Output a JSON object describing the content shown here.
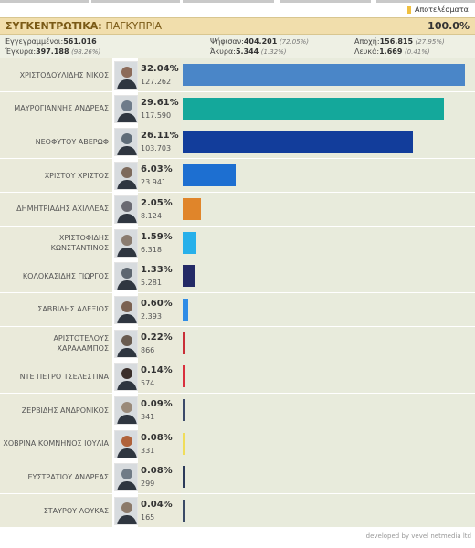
{
  "header": {
    "results_label": "Αποτελέσματα",
    "title": "ΣΥΓΚΕΝΤΡΩΤΙΚΑ:",
    "region": "ΠΑΓΚΥΠΡΙΑ",
    "counted_percent": "100.0%"
  },
  "stats": {
    "registered_label": "Εγγεγραμμένοι:",
    "registered_value": "561.016",
    "voted_label": "Ψήφισαν:",
    "voted_value": "404.201",
    "voted_pct": "(72.05%)",
    "abstention_label": "Αποχή:",
    "abstention_value": "156.815",
    "abstention_pct": "(27.95%)",
    "valid_label": "Έγκυρα:",
    "valid_value": "397.188",
    "valid_pct": "(98.26%)",
    "invalid_label": "Άκυρα:",
    "invalid_value": "5.344",
    "invalid_pct": "(1.32%)",
    "blank_label": "Λευκά:",
    "blank_value": "1.669",
    "blank_pct": "(0.41%)"
  },
  "chart_data": {
    "type": "bar",
    "orientation": "horizontal",
    "categories": [
      "ΧΡΙΣΤΟΔΟΥΛΙΔΗΣ ΝΙΚΟΣ",
      "ΜΑΥΡΟΓΙΑΝΝΗΣ ΑΝΔΡΕΑΣ",
      "ΝΕΟΦΥΤΟΥ ΑΒΕΡΩΦ",
      "ΧΡΙΣΤΟΥ ΧΡΙΣΤΟΣ",
      "ΔΗΜΗΤΡΙΑΔΗΣ ΑΧΙΛΛΕΑΣ",
      "ΧΡΙΣΤΟΦΙΔΗΣ ΚΩΝΣΤΑΝΤΙΝΟΣ",
      "ΚΟΛΟΚΑΣΙΔΗΣ ΓΙΩΡΓΟΣ",
      "ΣΑΒΒΙΔΗΣ ΑΛΕΞΙΟΣ",
      "ΑΡΙΣΤΟΤΕΛΟΥΣ ΧΑΡΑΛΑΜΠΟΣ",
      "ΝΤΕ ΠΕΤΡΟ ΤΣΕΛΕΣΤΙΝΑ",
      "ΖΕΡΒΙΔΗΣ ΑΝΔΡΟΝΙΚΟΣ",
      "ΧΟΒΡΙΝΑ ΚΟΜΝΗΝΟΣ ΙΟΥΛΙΑ",
      "ΕΥΣΤΡΑΤΙΟΥ ΑΝΔΡΕΑΣ",
      "ΣΤΑΥΡΟΥ ΛΟΥΚΑΣ"
    ],
    "values": [
      32.04,
      29.61,
      26.11,
      6.03,
      2.05,
      1.59,
      1.33,
      0.6,
      0.22,
      0.14,
      0.09,
      0.08,
      0.08,
      0.04
    ],
    "value_labels": [
      "32.04%",
      "29.61%",
      "26.11%",
      "6.03%",
      "2.05%",
      "1.59%",
      "1.33%",
      "0.60%",
      "0.22%",
      "0.14%",
      "0.09%",
      "0.08%",
      "0.08%",
      "0.04%"
    ],
    "votes": [
      "127.262",
      "117.590",
      "103.703",
      "23.941",
      "8.124",
      "6.318",
      "5.281",
      "2.393",
      "866",
      "574",
      "341",
      "331",
      "299",
      "165"
    ],
    "colors": [
      "#4a86c8",
      "#14a89b",
      "#123d9b",
      "#1d6fd1",
      "#e0852a",
      "#27b0ea",
      "#232a66",
      "#2e8ce6",
      "#c92f38",
      "#d9303e",
      "#3b4a6a",
      "#f0dd5a",
      "#2b3a5a",
      "#3a4a66"
    ],
    "xlim": [
      0,
      32.04
    ]
  },
  "footer": {
    "credit": "developed by vevel netmedia ltd"
  }
}
